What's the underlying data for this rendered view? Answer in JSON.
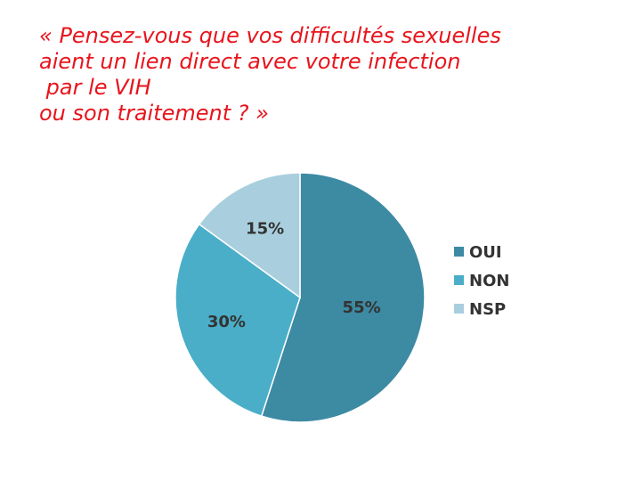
{
  "title_lines": [
    "« Pensez-vous que vos difficultés sexuelles",
    "aient un lien direct avec votre infection",
    " par le VIH",
    "ou son traitement ? »"
  ],
  "chart_data": {
    "type": "pie",
    "title": "« Pensez-vous que vos difficultés sexuelles aient un lien direct avec votre infection par le VIH ou son traitement ? »",
    "categories": [
      "OUI",
      "NON",
      "NSP"
    ],
    "values": [
      55,
      30,
      15
    ],
    "data_labels": [
      "55%",
      "30%",
      "15%"
    ],
    "colors": [
      "#3d8aa3",
      "#4aaec8",
      "#a9cfde"
    ],
    "legend": "right"
  }
}
